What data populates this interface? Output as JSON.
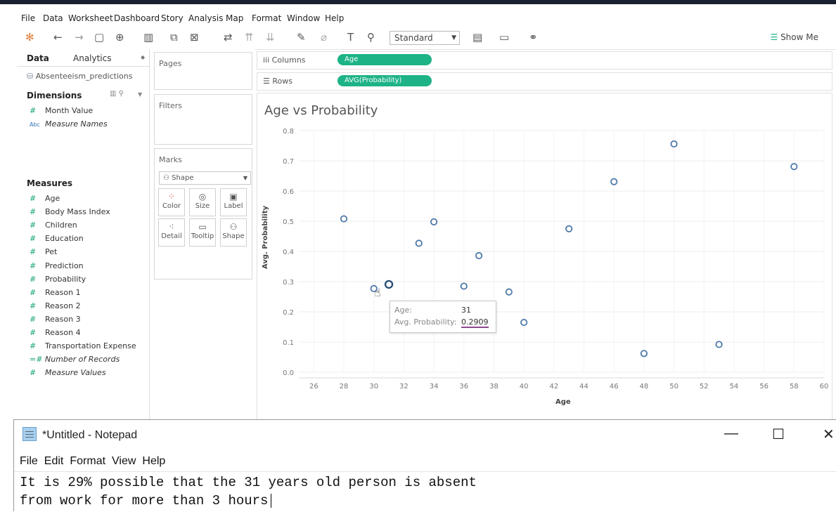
{
  "menu": [
    "File",
    "Data",
    "Worksheet",
    "Dashboard",
    "Story",
    "Analysis",
    "Map",
    "Format",
    "Window",
    "Help"
  ],
  "toolbar": {
    "fit": "Standard",
    "show_me": "Show Me"
  },
  "data_pane": {
    "tabs": [
      "Data",
      "Analytics"
    ],
    "datasource": "Absenteeism_predictions",
    "dimensions_label": "Dimensions",
    "dimensions": [
      {
        "label": "Month Value",
        "type": "number",
        "italic": false
      },
      {
        "label": "Measure Names",
        "type": "abc",
        "italic": true
      }
    ],
    "measures_label": "Measures",
    "measures": [
      {
        "label": "Age",
        "italic": false
      },
      {
        "label": "Body Mass Index",
        "italic": false
      },
      {
        "label": "Children",
        "italic": false
      },
      {
        "label": "Education",
        "italic": false
      },
      {
        "label": "Pet",
        "italic": false
      },
      {
        "label": "Prediction",
        "italic": false
      },
      {
        "label": "Probability",
        "italic": false
      },
      {
        "label": "Reason 1",
        "italic": false
      },
      {
        "label": "Reason 2",
        "italic": false
      },
      {
        "label": "Reason 3",
        "italic": false
      },
      {
        "label": "Reason 4",
        "italic": false
      },
      {
        "label": "Transportation Expense",
        "italic": false
      },
      {
        "label": "Number of Records",
        "italic": true
      },
      {
        "label": "Measure Values",
        "italic": true
      }
    ]
  },
  "shelves": {
    "pages": "Pages",
    "filters": "Filters",
    "marks": "Marks",
    "mark_type": "Shape",
    "mark_buttons": [
      "Color",
      "Size",
      "Label",
      "Detail",
      "Tooltip",
      "Shape"
    ],
    "columns_label": "Columns",
    "columns_pill": "Age",
    "rows_label": "Rows",
    "rows_pill": "AVG(Probability)"
  },
  "tooltip": {
    "age_key": "Age:",
    "age_val": "31",
    "prob_key": "Avg. Probability:",
    "prob_val": "0.2909"
  },
  "notepad": {
    "title": "*Untitled - Notepad",
    "menu": [
      "File",
      "Edit",
      "Format",
      "View",
      "Help"
    ],
    "lines": [
      "It is 29% possible that the 31 years old person is absent",
      "from work for more than 3 hours"
    ]
  },
  "colors": {
    "pill": "#1db387",
    "mark": "#4e79a7"
  },
  "chart_data": {
    "type": "scatter",
    "title": "Age vs Probability",
    "xlabel": "Age",
    "ylabel": "Avg. Probability",
    "xlim": [
      25,
      60
    ],
    "ylim": [
      0,
      0.8
    ],
    "xticks": [
      26,
      28,
      30,
      32,
      34,
      36,
      38,
      40,
      42,
      44,
      46,
      48,
      50,
      52,
      54,
      56,
      58,
      60
    ],
    "yticks": [
      0.0,
      0.1,
      0.2,
      0.3,
      0.4,
      0.5,
      0.6,
      0.7,
      0.8
    ],
    "grid": true,
    "x": [
      28,
      30,
      31,
      33,
      34,
      36,
      37,
      39,
      40,
      43,
      46,
      48,
      50,
      53,
      58
    ],
    "y": [
      0.508,
      0.277,
      0.2909,
      0.427,
      0.498,
      0.285,
      0.386,
      0.266,
      0.165,
      0.475,
      0.631,
      0.062,
      0.756,
      0.092,
      0.681
    ]
  }
}
